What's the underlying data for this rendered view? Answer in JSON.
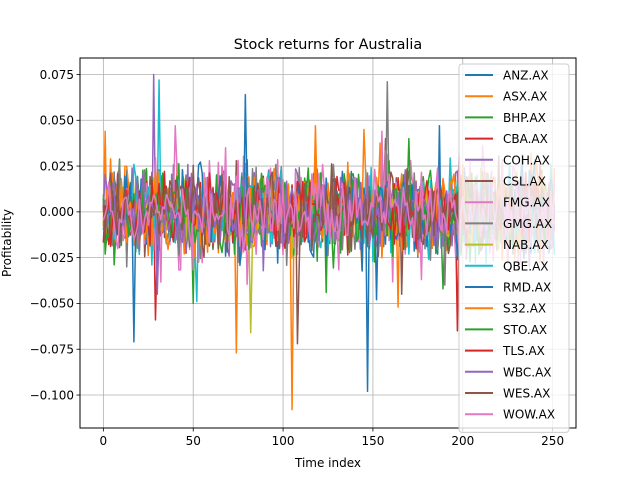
{
  "chart_data": {
    "type": "line",
    "title": "Stock returns for Australia",
    "xlabel": "Time index",
    "ylabel": "Profitability",
    "xlim": [
      -13,
      263
    ],
    "ylim": [
      -0.118,
      0.084
    ],
    "xticks": [
      0,
      50,
      100,
      150,
      200,
      250
    ],
    "xtick_labels": [
      "0",
      "50",
      "100",
      "150",
      "200",
      "250"
    ],
    "yticks": [
      -0.1,
      -0.075,
      -0.05,
      -0.025,
      0.0,
      0.025,
      0.05,
      0.075
    ],
    "ytick_labels": [
      "−0.100",
      "−0.075",
      "−0.050",
      "−0.025",
      "0.000",
      "0.025",
      "0.050",
      "0.075"
    ],
    "grid": true,
    "legend_position": "top-right",
    "n_points": 252,
    "series": [
      {
        "name": "ANZ.AX",
        "color": "#1f77b4",
        "amp": 0.011,
        "spikes": [
          [
            187,
            0.047
          ]
        ]
      },
      {
        "name": "ASX.AX",
        "color": "#ff7f0e",
        "amp": 0.013,
        "spikes": [
          [
            1,
            0.044
          ],
          [
            74,
            -0.077
          ],
          [
            105,
            -0.108
          ],
          [
            164,
            -0.052
          ]
        ]
      },
      {
        "name": "BHP.AX",
        "color": "#2ca02c",
        "amp": 0.012,
        "spikes": [
          [
            50,
            -0.05
          ],
          [
            124,
            -0.044
          ],
          [
            189,
            -0.042
          ]
        ]
      },
      {
        "name": "CBA.AX",
        "color": "#d62728",
        "amp": 0.01,
        "spikes": [
          [
            29,
            -0.059
          ],
          [
            197,
            -0.065
          ]
        ]
      },
      {
        "name": "COH.AX",
        "color": "#9467bd",
        "amp": 0.012,
        "spikes": [
          [
            28,
            0.075
          ],
          [
            30,
            -0.045
          ]
        ]
      },
      {
        "name": "CSL.AX",
        "color": "#8c564b",
        "amp": 0.011,
        "spikes": [
          [
            157,
            0.04
          ],
          [
            166,
            -0.045
          ]
        ]
      },
      {
        "name": "FMG.AX",
        "color": "#e377c2",
        "amp": 0.016,
        "spikes": [
          [
            40,
            0.047
          ],
          [
            155,
            0.044
          ]
        ]
      },
      {
        "name": "GMG.AX",
        "color": "#7f7f7f",
        "amp": 0.012,
        "spikes": [
          [
            158,
            0.071
          ],
          [
            190,
            -0.04
          ]
        ]
      },
      {
        "name": "NAB.AX",
        "color": "#bcbd22",
        "amp": 0.01,
        "spikes": [
          [
            82,
            -0.066
          ]
        ]
      },
      {
        "name": "QBE.AX",
        "color": "#17becf",
        "amp": 0.012,
        "spikes": [
          [
            31,
            0.072
          ],
          [
            52,
            -0.049
          ]
        ]
      },
      {
        "name": "RMD.AX",
        "color": "#1f77b4",
        "amp": 0.012,
        "spikes": [
          [
            17,
            -0.071
          ],
          [
            79,
            0.064
          ],
          [
            147,
            -0.098
          ],
          [
            152,
            -0.048
          ]
        ]
      },
      {
        "name": "S32.AX",
        "color": "#ff7f0e",
        "amp": 0.012,
        "spikes": [
          [
            118,
            0.047
          ],
          [
            145,
            0.045
          ]
        ]
      },
      {
        "name": "STO.AX",
        "color": "#2ca02c",
        "amp": 0.011,
        "spikes": [
          [
            170,
            0.04
          ]
        ]
      },
      {
        "name": "TLS.AX",
        "color": "#d62728",
        "amp": 0.009,
        "spikes": []
      },
      {
        "name": "WBC.AX",
        "color": "#9467bd",
        "amp": 0.01,
        "spikes": []
      },
      {
        "name": "WES.AX",
        "color": "#8c564b",
        "amp": 0.01,
        "spikes": [
          [
            108,
            -0.072
          ]
        ]
      },
      {
        "name": "WOW.AX",
        "color": "#e377c2",
        "amp": 0.009,
        "spikes": [
          [
            68,
            0.035
          ]
        ]
      }
    ]
  }
}
